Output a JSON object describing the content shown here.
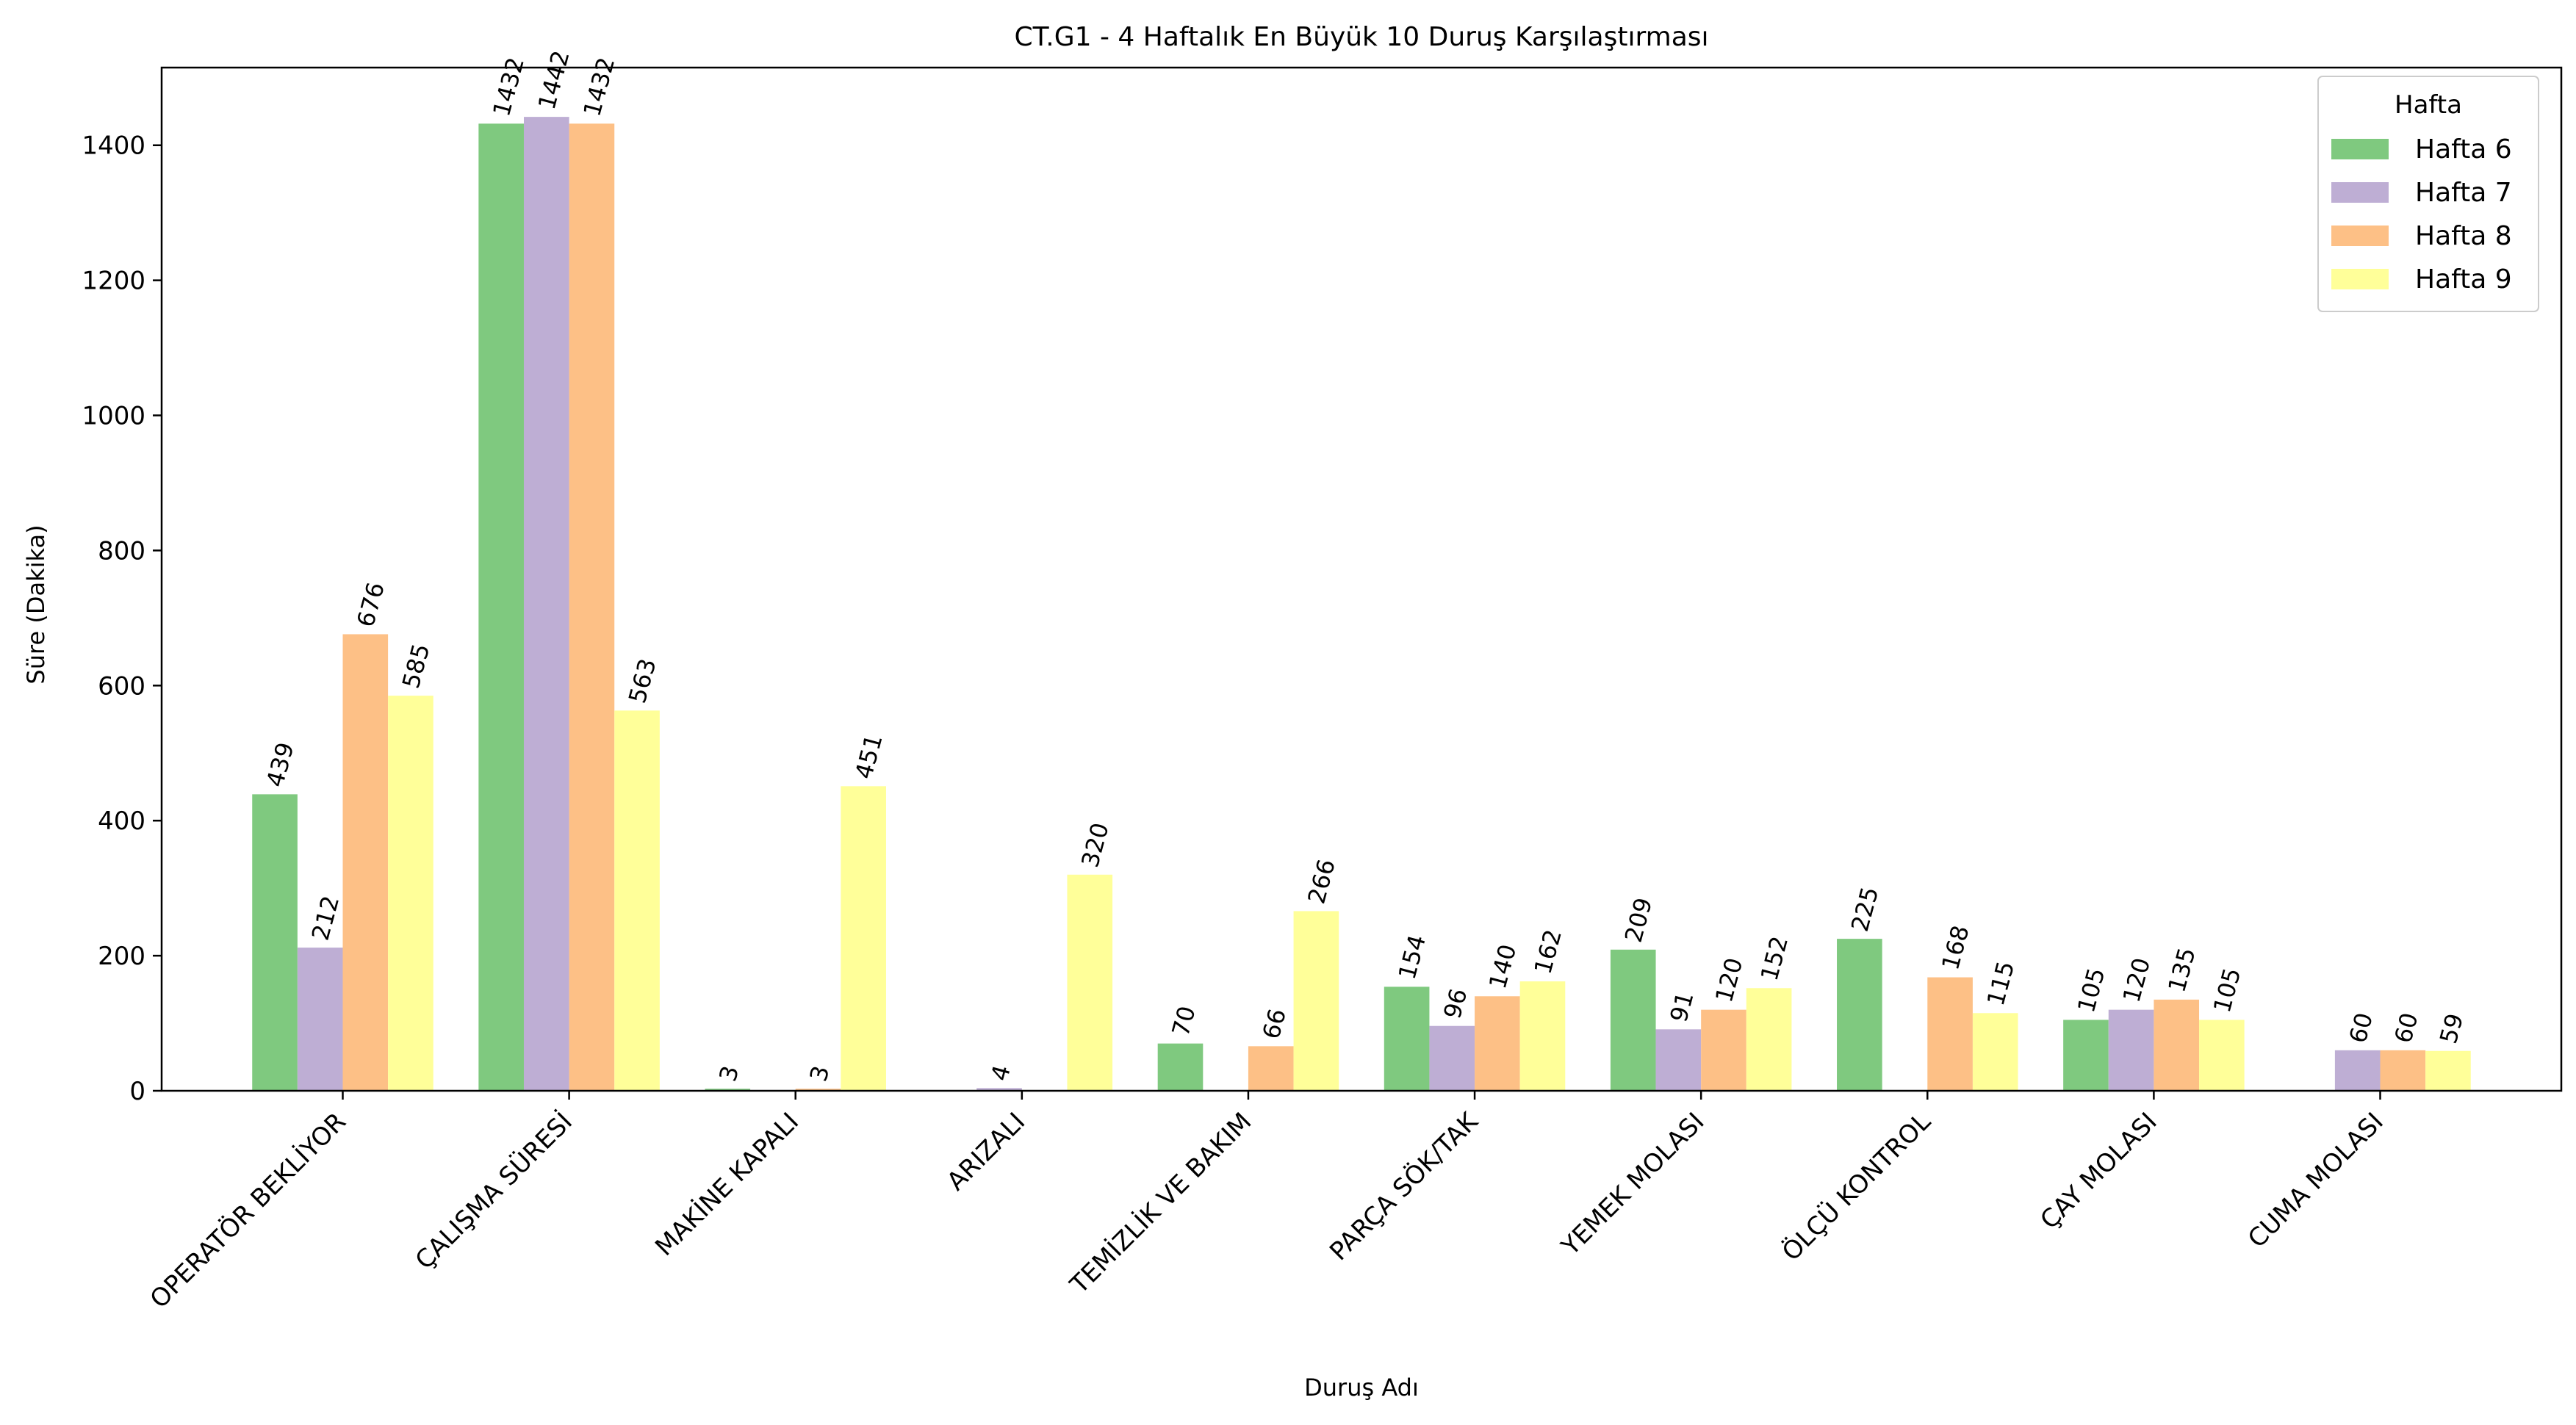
{
  "chart_data": {
    "type": "bar",
    "title": "CT.G1 - 4 Haftalık En Büyük 10 Duruş Karşılaştırması",
    "xlabel": "Duruş Adı",
    "ylabel": "Süre (Dakika)",
    "ylim": [
      0,
      1515
    ],
    "yticks": [
      0,
      200,
      400,
      600,
      800,
      1000,
      1200,
      1400
    ],
    "grid": false,
    "legend": {
      "title": "Hafta",
      "position": "top-right"
    },
    "categories": [
      "OPERATÖR BEKLİYOR",
      "ÇALIŞMA SÜRESİ",
      "MAKİNE KAPALI",
      "ARIZALI",
      "TEMİZLİK VE BAKIM",
      "PARÇA SÖK/TAK",
      "YEMEK MOLASI",
      "ÖLÇÜ KONTROL",
      "ÇAY MOLASI",
      "CUMA  MOLASI"
    ],
    "series": [
      {
        "name": "Hafta 6",
        "color": "#7fc97f",
        "values": [
          439,
          1432,
          3,
          0,
          70,
          154,
          209,
          225,
          105,
          0
        ]
      },
      {
        "name": "Hafta 7",
        "color": "#beaed4",
        "values": [
          212,
          1442,
          0,
          4,
          0,
          96,
          91,
          0,
          120,
          60
        ]
      },
      {
        "name": "Hafta 8",
        "color": "#fdc086",
        "values": [
          676,
          1432,
          3,
          0,
          66,
          140,
          120,
          168,
          135,
          60
        ]
      },
      {
        "name": "Hafta 9",
        "color": "#ffff99",
        "values": [
          585,
          563,
          451,
          320,
          266,
          162,
          152,
          115,
          105,
          59
        ]
      }
    ]
  }
}
